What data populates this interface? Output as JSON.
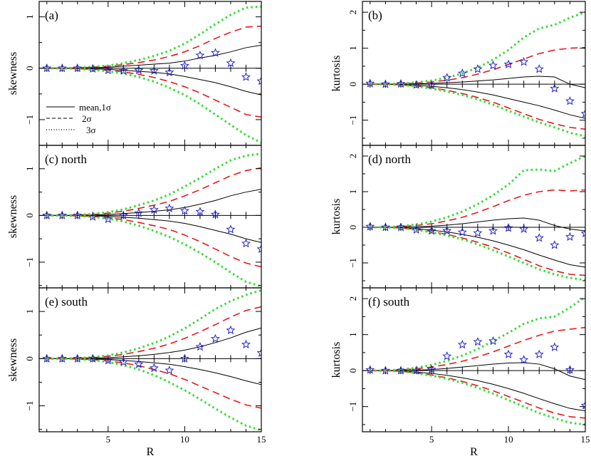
{
  "chart_data": [
    {
      "type": "line",
      "title": "(a)",
      "xlabel": "",
      "ylabel": "skewness",
      "xlim": [
        0.5,
        15
      ],
      "ylim": [
        -1.5,
        1.3
      ],
      "xticks": [
        5,
        10,
        15
      ],
      "yticks": [
        -1,
        0,
        1
      ],
      "ytick_labels": [
        "−1",
        "0",
        "1"
      ],
      "x": [
        1,
        2,
        3,
        4,
        5,
        6,
        7,
        8,
        9,
        10,
        11,
        12,
        13,
        14,
        15
      ],
      "mean": [
        0,
        0,
        0,
        0,
        0,
        0,
        0,
        0,
        0,
        0,
        0,
        0,
        0,
        0,
        0
      ],
      "sigma1": [
        [
          0,
          0,
          0,
          0.01,
          0.02,
          0.04,
          0.06,
          0.08,
          0.1,
          0.14,
          0.2,
          0.25,
          0.32,
          0.4,
          0.45
        ],
        [
          0,
          0,
          0,
          -0.01,
          -0.02,
          -0.04,
          -0.06,
          -0.08,
          -0.11,
          -0.16,
          -0.22,
          -0.28,
          -0.36,
          -0.45,
          -0.52
        ]
      ],
      "sigma2": [
        [
          0,
          0,
          0.01,
          0.02,
          0.04,
          0.07,
          0.11,
          0.16,
          0.23,
          0.32,
          0.44,
          0.58,
          0.7,
          0.8,
          0.82
        ],
        [
          0,
          0,
          -0.01,
          -0.02,
          -0.04,
          -0.07,
          -0.12,
          -0.18,
          -0.26,
          -0.36,
          -0.48,
          -0.62,
          -0.76,
          -0.9,
          -0.95
        ]
      ],
      "sigma3": [
        [
          0,
          0,
          0.01,
          0.03,
          0.05,
          0.1,
          0.16,
          0.24,
          0.34,
          0.48,
          0.66,
          0.86,
          1.04,
          1.18,
          1.2
        ],
        [
          0,
          0,
          -0.01,
          -0.03,
          -0.06,
          -0.1,
          -0.17,
          -0.26,
          -0.38,
          -0.52,
          -0.7,
          -0.9,
          -1.1,
          -1.3,
          -1.45
        ]
      ],
      "observed": [
        0,
        0,
        0,
        -0.01,
        -0.04,
        -0.05,
        -0.04,
        -0.05,
        -0.08,
        0.05,
        0.25,
        0.3,
        0.1,
        -0.17,
        -0.25
      ],
      "legend": [
        "mean,1σ",
        "2σ",
        "3σ"
      ]
    },
    {
      "type": "line",
      "title": "(b)",
      "xlabel": "",
      "ylabel": "kurtosis",
      "xlim": [
        0.5,
        15
      ],
      "ylim": [
        -1.7,
        2.3
      ],
      "xticks": [
        5,
        10,
        15
      ],
      "yticks": [
        -1,
        0,
        1,
        2
      ],
      "ytick_labels": [
        "−1",
        "0",
        "1",
        "2"
      ],
      "x": [
        1,
        2,
        3,
        4,
        5,
        6,
        7,
        8,
        9,
        10,
        11,
        12,
        13,
        14,
        15
      ],
      "mean": [
        0,
        0,
        0,
        0,
        0,
        0,
        0,
        0,
        0,
        0,
        0,
        0,
        0,
        0,
        0
      ],
      "sigma1": [
        [
          0,
          0,
          0,
          0.01,
          0.02,
          0.04,
          0.06,
          0.09,
          0.12,
          0.16,
          0.2,
          0.22,
          0.2,
          0,
          -0.1
        ],
        [
          0,
          0,
          -0.01,
          -0.03,
          -0.06,
          -0.1,
          -0.15,
          -0.22,
          -0.3,
          -0.4,
          -0.5,
          -0.6,
          -0.72,
          -0.85,
          -0.95
        ]
      ],
      "sigma2": [
        [
          0,
          0,
          0.01,
          0.03,
          0.06,
          0.11,
          0.18,
          0.28,
          0.4,
          0.55,
          0.7,
          0.85,
          0.95,
          1.0,
          1.02
        ],
        [
          0,
          0,
          -0.02,
          -0.05,
          -0.1,
          -0.17,
          -0.26,
          -0.37,
          -0.5,
          -0.66,
          -0.82,
          -0.98,
          -1.1,
          -1.2,
          -1.25
        ]
      ],
      "sigma3": [
        [
          0,
          0,
          0.02,
          0.05,
          0.1,
          0.18,
          0.3,
          0.46,
          0.68,
          0.95,
          1.3,
          1.55,
          1.65,
          1.85,
          2.0
        ],
        [
          0,
          0,
          -0.02,
          -0.06,
          -0.12,
          -0.2,
          -0.3,
          -0.42,
          -0.57,
          -0.74,
          -0.9,
          -1.06,
          -1.2,
          -1.35,
          -1.45
        ]
      ],
      "observed": [
        0.02,
        0,
        0.01,
        -0.02,
        -0.03,
        0.18,
        0.3,
        0.42,
        0.52,
        0.55,
        0.62,
        0.42,
        -0.12,
        -0.47,
        -0.82
      ],
      "legend": []
    },
    {
      "type": "line",
      "title": "(c) north",
      "xlabel": "",
      "ylabel": "skewness",
      "xlim": [
        0.5,
        15
      ],
      "ylim": [
        -1.55,
        1.5
      ],
      "xticks": [
        5,
        10,
        15
      ],
      "yticks": [
        -1,
        0,
        1
      ],
      "ytick_labels": [
        "−1",
        "0",
        "1"
      ],
      "x": [
        1,
        2,
        3,
        4,
        5,
        6,
        7,
        8,
        9,
        10,
        11,
        12,
        13,
        14,
        15
      ],
      "mean": [
        0,
        0,
        0,
        0,
        0,
        0,
        0,
        0,
        0,
        0,
        0,
        0,
        0,
        0,
        0
      ],
      "sigma1": [
        [
          0,
          0,
          0,
          0.01,
          0.02,
          0.04,
          0.06,
          0.09,
          0.12,
          0.17,
          0.24,
          0.32,
          0.42,
          0.5,
          0.56
        ],
        [
          0,
          0,
          0,
          -0.01,
          -0.02,
          -0.04,
          -0.06,
          -0.09,
          -0.12,
          -0.17,
          -0.24,
          -0.32,
          -0.4,
          -0.5,
          -0.58
        ]
      ],
      "sigma2": [
        [
          0,
          0,
          0.01,
          0.02,
          0.05,
          0.09,
          0.15,
          0.22,
          0.3,
          0.42,
          0.55,
          0.7,
          0.85,
          0.96,
          1.02
        ],
        [
          0,
          0,
          -0.01,
          -0.02,
          -0.05,
          -0.09,
          -0.15,
          -0.22,
          -0.3,
          -0.42,
          -0.56,
          -0.72,
          -0.88,
          -1.02,
          -1.1
        ]
      ],
      "sigma3": [
        [
          0,
          0,
          0.01,
          0.03,
          0.07,
          0.13,
          0.22,
          0.32,
          0.45,
          0.62,
          0.8,
          1.0,
          1.18,
          1.28,
          1.32
        ],
        [
          0,
          0,
          -0.01,
          -0.03,
          -0.07,
          -0.13,
          -0.22,
          -0.33,
          -0.46,
          -0.62,
          -0.8,
          -1.0,
          -1.22,
          -1.42,
          -1.52
        ]
      ],
      "observed": [
        0,
        0,
        0,
        -0.03,
        -0.08,
        0,
        0.05,
        0.12,
        0.15,
        0.1,
        0.08,
        0.02,
        -0.3,
        -0.6,
        -0.72
      ],
      "legend": []
    },
    {
      "type": "line",
      "title": "(d) north",
      "xlabel": "",
      "ylabel": "kurtosis",
      "xlim": [
        0.5,
        15
      ],
      "ylim": [
        -1.7,
        2.3
      ],
      "xticks": [
        5,
        10,
        15
      ],
      "yticks": [
        -1,
        0,
        1,
        2
      ],
      "ytick_labels": [
        "−1",
        "0",
        "1",
        "2"
      ],
      "x": [
        1,
        2,
        3,
        4,
        5,
        6,
        7,
        8,
        9,
        10,
        11,
        12,
        13,
        14,
        15
      ],
      "mean": [
        0,
        0,
        0,
        0,
        0,
        0,
        0,
        0,
        0,
        0,
        0,
        0,
        0,
        0,
        0
      ],
      "sigma1": [
        [
          0,
          0,
          0,
          0.01,
          0.03,
          0.06,
          0.1,
          0.15,
          0.2,
          0.24,
          0.26,
          0.2,
          0.05,
          -0.05,
          -0.1
        ],
        [
          0,
          0,
          -0.01,
          -0.04,
          -0.08,
          -0.13,
          -0.2,
          -0.28,
          -0.38,
          -0.5,
          -0.63,
          -0.78,
          -0.92,
          -1.05,
          -1.12
        ]
      ],
      "sigma2": [
        [
          0,
          0,
          0.02,
          0.05,
          0.1,
          0.18,
          0.28,
          0.42,
          0.58,
          0.75,
          0.9,
          1.0,
          1.05,
          1.02,
          1.05
        ],
        [
          0,
          0,
          -0.02,
          -0.06,
          -0.12,
          -0.2,
          -0.3,
          -0.42,
          -0.56,
          -0.72,
          -0.9,
          -1.08,
          -1.22,
          -1.32,
          -1.35
        ]
      ],
      "sigma3": [
        [
          0,
          0,
          0.03,
          0.08,
          0.16,
          0.28,
          0.44,
          0.65,
          0.9,
          1.2,
          1.6,
          1.62,
          1.58,
          1.8,
          2.0
        ],
        [
          0,
          0,
          -0.02,
          -0.07,
          -0.14,
          -0.23,
          -0.34,
          -0.48,
          -0.64,
          -0.82,
          -1.0,
          -1.18,
          -1.32,
          -1.42,
          -1.48
        ]
      ],
      "observed": [
        0.02,
        0,
        0,
        -0.07,
        -0.1,
        -0.1,
        -0.14,
        -0.16,
        -0.1,
        -0.02,
        -0.05,
        -0.3,
        -0.5,
        -0.27,
        -0.17
      ],
      "legend": []
    },
    {
      "type": "line",
      "title": "(e) south",
      "xlabel": "R",
      "ylabel": "skewness",
      "xlim": [
        0.5,
        15
      ],
      "ylim": [
        -1.55,
        1.5
      ],
      "xticks": [
        5,
        10,
        15
      ],
      "yticks": [
        -1,
        0,
        1
      ],
      "ytick_labels": [
        "−1",
        "0",
        "1"
      ],
      "x": [
        1,
        2,
        3,
        4,
        5,
        6,
        7,
        8,
        9,
        10,
        11,
        12,
        13,
        14,
        15
      ],
      "mean": [
        0,
        0,
        0,
        0,
        0,
        0,
        0,
        0,
        0,
        0,
        0,
        0,
        0,
        0,
        0
      ],
      "sigma1": [
        [
          0,
          0,
          0,
          0.01,
          0.02,
          0.04,
          0.06,
          0.09,
          0.13,
          0.18,
          0.25,
          0.34,
          0.44,
          0.56,
          0.65
        ],
        [
          0,
          0,
          0,
          -0.01,
          -0.02,
          -0.04,
          -0.06,
          -0.09,
          -0.12,
          -0.17,
          -0.23,
          -0.3,
          -0.38,
          -0.47,
          -0.55
        ]
      ],
      "sigma2": [
        [
          0,
          0,
          0.01,
          0.02,
          0.05,
          0.09,
          0.15,
          0.22,
          0.31,
          0.43,
          0.57,
          0.72,
          0.88,
          1.02,
          1.1
        ],
        [
          0,
          0,
          -0.01,
          -0.02,
          -0.05,
          -0.09,
          -0.15,
          -0.23,
          -0.32,
          -0.44,
          -0.58,
          -0.72,
          -0.86,
          -0.98,
          -1.05
        ]
      ],
      "sigma3": [
        [
          0,
          0,
          0.01,
          0.03,
          0.07,
          0.13,
          0.22,
          0.33,
          0.47,
          0.64,
          0.84,
          1.05,
          1.22,
          1.35,
          1.45
        ],
        [
          0,
          0,
          -0.01,
          -0.03,
          -0.07,
          -0.14,
          -0.23,
          -0.35,
          -0.5,
          -0.67,
          -0.86,
          -1.06,
          -1.25,
          -1.42,
          -1.52
        ]
      ],
      "observed": [
        0,
        0,
        0,
        0,
        -0.04,
        -0.07,
        -0.12,
        -0.2,
        -0.25,
        0,
        0.25,
        0.42,
        0.6,
        0.3,
        0.12
      ],
      "legend": []
    },
    {
      "type": "line",
      "title": "(f) south",
      "xlabel": "R",
      "ylabel": "kurtosis",
      "xlim": [
        0.5,
        15
      ],
      "ylim": [
        -1.7,
        2.3
      ],
      "xticks": [
        5,
        10,
        15
      ],
      "yticks": [
        -1,
        0,
        1,
        2
      ],
      "ytick_labels": [
        "−1",
        "0",
        "1",
        "2"
      ],
      "x": [
        1,
        2,
        3,
        4,
        5,
        6,
        7,
        8,
        9,
        10,
        11,
        12,
        13,
        14,
        15
      ],
      "mean": [
        0,
        0,
        0,
        0,
        0,
        0,
        0,
        0,
        0,
        0,
        0,
        0,
        0,
        0,
        0
      ],
      "sigma1": [
        [
          0,
          0,
          0,
          0.01,
          0.03,
          0.06,
          0.1,
          0.14,
          0.18,
          0.21,
          0.22,
          0.18,
          0.05,
          -0.15,
          -0.25
        ],
        [
          0,
          0,
          -0.01,
          -0.04,
          -0.08,
          -0.13,
          -0.2,
          -0.28,
          -0.38,
          -0.5,
          -0.63,
          -0.78,
          -0.92,
          -1.05,
          -1.12
        ]
      ],
      "sigma2": [
        [
          0,
          0,
          0.02,
          0.05,
          0.1,
          0.17,
          0.26,
          0.38,
          0.52,
          0.68,
          0.84,
          0.98,
          1.1,
          1.15,
          1.2
        ],
        [
          0,
          0,
          -0.02,
          -0.06,
          -0.12,
          -0.2,
          -0.3,
          -0.42,
          -0.56,
          -0.72,
          -0.88,
          -1.04,
          -1.18,
          -1.28,
          -1.32
        ]
      ],
      "sigma3": [
        [
          0,
          0,
          0.03,
          0.08,
          0.16,
          0.27,
          0.42,
          0.6,
          0.82,
          1.05,
          1.3,
          1.45,
          1.5,
          1.75,
          2.05
        ],
        [
          0,
          0,
          -0.02,
          -0.07,
          -0.14,
          -0.23,
          -0.34,
          -0.48,
          -0.64,
          -0.82,
          -1.0,
          -1.18,
          -1.32,
          -1.45,
          -1.5
        ]
      ],
      "observed": [
        0.02,
        0,
        0,
        0,
        0.03,
        0.4,
        0.72,
        0.8,
        0.82,
        0.45,
        0.3,
        0.45,
        0.65,
        0.02,
        -0.97
      ],
      "legend": []
    }
  ]
}
